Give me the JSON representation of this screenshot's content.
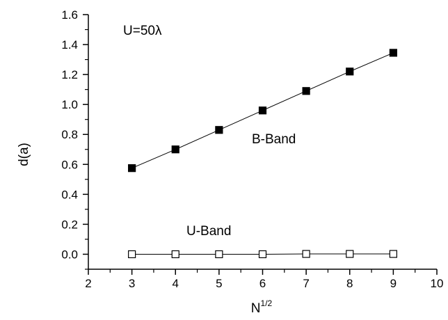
{
  "chart_data": {
    "type": "line",
    "xlabel": "N",
    "xlabel_sup": "1/2",
    "ylabel": "d(a)",
    "xlim": [
      2,
      10
    ],
    "ylim": [
      -0.1,
      1.6
    ],
    "xticks": [
      2,
      3,
      4,
      5,
      6,
      7,
      8,
      9,
      10
    ],
    "yticks": [
      0.0,
      0.2,
      0.4,
      0.6,
      0.8,
      1.0,
      1.2,
      1.4,
      1.6
    ],
    "ytick_labels": [
      "0.0",
      "0.2",
      "0.4",
      "0.6",
      "0.8",
      "1.0",
      "1.2",
      "1.4",
      "1.6"
    ],
    "grid": false,
    "annotations": {
      "condition": "U=50λ",
      "b_band": "B-Band",
      "u_band": "U-Band"
    },
    "series": [
      {
        "x": [
          3,
          4,
          5,
          6,
          7,
          8,
          9
        ],
        "values": [
          0.575,
          0.7,
          0.83,
          0.96,
          1.09,
          1.22,
          1.345
        ],
        "marker": "filled-square",
        "color": "#000000"
      },
      {
        "x": [
          3,
          4,
          5,
          6,
          7,
          8,
          9
        ],
        "values": [
          0.0,
          0.0,
          0.0,
          0.0,
          0.002,
          0.002,
          0.002
        ],
        "marker": "open-square",
        "color": "#000000"
      }
    ]
  }
}
